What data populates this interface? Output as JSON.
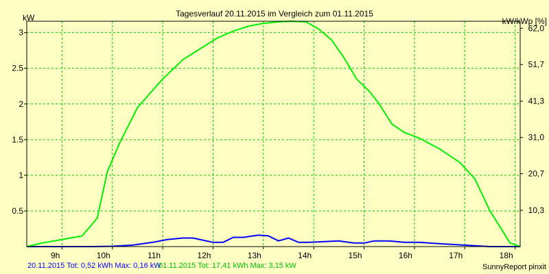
{
  "chart_data": {
    "type": "line",
    "title": "Tagesverlauf 20.11.2015 im Vergleich zum 01.11.2015",
    "ylabel": "kW",
    "y2label": "kW/kWp [%]",
    "xlabel": "",
    "xlim": [
      8.3,
      18.1
    ],
    "ylim": [
      0,
      3.16
    ],
    "y2lim": [
      0,
      64
    ],
    "x_tick_labels": [
      "9h",
      "10h",
      "11h",
      "12h",
      "13h",
      "14h",
      "15h",
      "16h",
      "17h",
      "18h"
    ],
    "x_tick_values": [
      9,
      10,
      11,
      12,
      13,
      14,
      15,
      16,
      17,
      18
    ],
    "y_tick_values": [
      0.5,
      1,
      1.5,
      2,
      2.5,
      3
    ],
    "y_tick_labels": [
      "0.5",
      "1",
      "1.5",
      "2",
      "2.5",
      "3"
    ],
    "y2_tick_values": [
      10.3,
      20.7,
      31.0,
      41.3,
      51.7,
      62.0
    ],
    "y2_tick_labels": [
      "10,3",
      "20,7",
      "31,0",
      "41,3",
      "51,7",
      "62,0"
    ],
    "grid": true,
    "series": [
      {
        "name": "20.11.2015",
        "color": "#0000ff",
        "x": [
          8.3,
          9.6,
          10.0,
          10.4,
          10.8,
          11.1,
          11.4,
          11.6,
          11.8,
          12.0,
          12.2,
          12.4,
          12.6,
          12.8,
          12.9,
          13.1,
          13.3,
          13.5,
          13.7,
          13.9,
          14.2,
          14.5,
          14.8,
          15.0,
          15.2,
          15.5,
          15.8,
          16.1,
          16.5,
          17.0,
          17.5,
          18.1
        ],
        "values": [
          0.0,
          0.0,
          0.005,
          0.02,
          0.06,
          0.1,
          0.12,
          0.12,
          0.09,
          0.06,
          0.06,
          0.13,
          0.13,
          0.15,
          0.16,
          0.15,
          0.08,
          0.12,
          0.06,
          0.06,
          0.07,
          0.08,
          0.05,
          0.05,
          0.08,
          0.08,
          0.06,
          0.06,
          0.04,
          0.02,
          0.0,
          0.0
        ]
      },
      {
        "name": "01.11.2015",
        "color": "#00ee00",
        "x": [
          8.3,
          8.6,
          9.0,
          9.4,
          9.7,
          9.9,
          10.15,
          10.5,
          11.0,
          11.4,
          11.8,
          12.1,
          12.4,
          12.7,
          13.0,
          13.3,
          13.55,
          13.85,
          14.1,
          14.35,
          14.6,
          14.85,
          15.1,
          15.3,
          15.55,
          15.8,
          16.1,
          16.5,
          16.9,
          17.2,
          17.5,
          17.9,
          18.1
        ],
        "values": [
          0.0,
          0.05,
          0.1,
          0.15,
          0.4,
          1.05,
          1.46,
          1.95,
          2.35,
          2.62,
          2.8,
          2.93,
          3.02,
          3.09,
          3.13,
          3.15,
          3.16,
          3.15,
          3.05,
          2.9,
          2.65,
          2.35,
          2.18,
          2.0,
          1.72,
          1.6,
          1.52,
          1.37,
          1.18,
          0.95,
          0.5,
          0.05,
          0.0
        ]
      }
    ]
  },
  "footer": {
    "legend_blue": "20.11.2015 Tot: 0,52 kWh Max: 0,16 kW",
    "legend_green": "01.11.2015 Tot: 17,41 kWh Max: 3,15 kW",
    "brand": "SunnyReport pinxit"
  }
}
